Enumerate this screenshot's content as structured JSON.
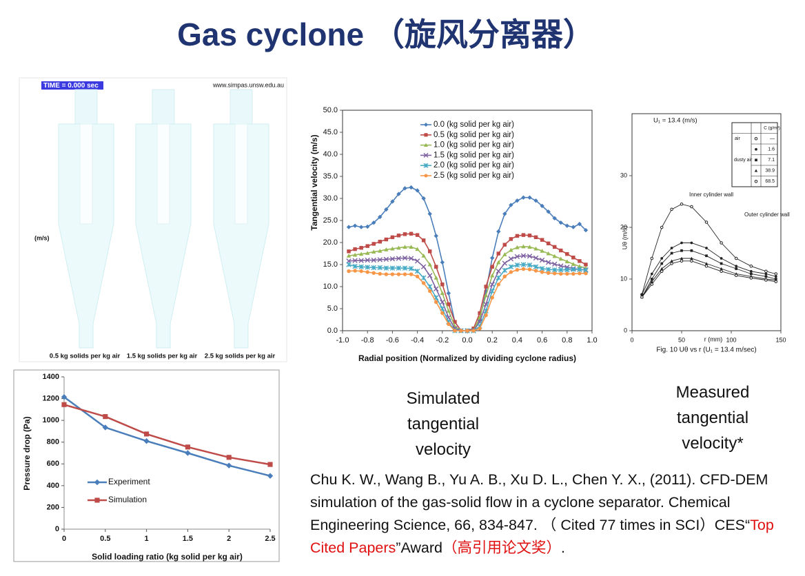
{
  "title": "Gas cyclone （旋风分离器）",
  "simulation_panel": {
    "time_label": "TIME =  0.000 sec",
    "url": "www.simpas.unsw.edu.au",
    "unit": "(m/s)",
    "labels": [
      "0.5 kg solids per kg air",
      "1.5 kg solids per kg air",
      "2.5 kg solids per kg air"
    ]
  },
  "captions": {
    "simulated": "Simulated tangential velocity",
    "measured": "Measured tangential velocity*"
  },
  "citation": {
    "text": "Chu K. W., Wang B., Yu A. B., Xu D. L., Chen Y. X., (2011). CFD-DEM simulation of the gas-solid flow in a cyclone separator. Chemical Engineering Science, 66, 834-847. （ Cited 77 times in SCI）CES“",
    "highlight": "Top Cited Papers",
    "award": "”Award",
    "award_cn": "（高引用论文奖）",
    "end": "."
  },
  "chart_data": [
    {
      "type": "line",
      "x_label": "Radial position (Normalized by dividing cyclone radius)",
      "y_label": "Tangential velocity (m/s)",
      "x": [
        -0.95,
        -0.9,
        -0.85,
        -0.8,
        -0.75,
        -0.7,
        -0.65,
        -0.6,
        -0.55,
        -0.5,
        -0.45,
        -0.4,
        -0.35,
        -0.3,
        -0.25,
        -0.2,
        -0.15,
        -0.1,
        -0.05,
        0,
        0.05,
        0.1,
        0.15,
        0.2,
        0.25,
        0.3,
        0.35,
        0.4,
        0.45,
        0.5,
        0.55,
        0.6,
        0.65,
        0.7,
        0.75,
        0.8,
        0.85,
        0.9,
        0.95
      ],
      "series": [
        {
          "name": "0.0 (kg solid per kg air)",
          "color": "#4a7ebb",
          "marker": "diamond",
          "values": [
            23.5,
            23.8,
            23.5,
            23.6,
            24.5,
            25.8,
            27.5,
            29.3,
            31,
            32.3,
            32.5,
            31.8,
            30,
            26.5,
            21.5,
            15.5,
            8.5,
            2,
            0,
            0,
            0,
            2.5,
            9,
            16.5,
            22.5,
            26.5,
            28.5,
            29.5,
            30.2,
            30.2,
            29.5,
            28.3,
            27,
            25.5,
            24.5,
            23.8,
            23.5,
            24.2,
            22.8
          ]
        },
        {
          "name": "0.5 (kg solid per kg air)",
          "color": "#be4b48",
          "marker": "square",
          "values": [
            18,
            18.5,
            18.8,
            19.2,
            19.7,
            20.2,
            20.7,
            21.2,
            21.6,
            21.9,
            22,
            21.7,
            20.5,
            18,
            14.5,
            10.5,
            6,
            2,
            0,
            0,
            0.5,
            4,
            10,
            14.5,
            17.5,
            19.5,
            20.8,
            21.5,
            21.7,
            21.6,
            21.2,
            20.6,
            19.8,
            19,
            18.2,
            17.4,
            16.6,
            15.8,
            15
          ]
        },
        {
          "name": "1.0 (kg solid per kg air)",
          "color": "#98b954",
          "marker": "triangle",
          "values": [
            17,
            17.2,
            17.4,
            17.6,
            17.9,
            18.1,
            18.4,
            18.6,
            18.8,
            19,
            19,
            18.5,
            17,
            15,
            12,
            8.5,
            4.5,
            1,
            0,
            0,
            0,
            3,
            8,
            12.5,
            15.5,
            17.3,
            18.3,
            18.9,
            19.1,
            19,
            18.6,
            18.1,
            17.5,
            16.9,
            16.3,
            15.7,
            15.1,
            14.6,
            14.2
          ]
        },
        {
          "name": "1.5 (kg solid per kg air)",
          "color": "#7d60a0",
          "marker": "x",
          "values": [
            15.8,
            15.9,
            15.9,
            16,
            16,
            16.1,
            16.2,
            16.3,
            16.4,
            16.5,
            16.4,
            15.8,
            14.5,
            12.5,
            9.5,
            6.5,
            3,
            0.5,
            0,
            0,
            0,
            2,
            6,
            10.5,
            13.5,
            15.3,
            16.3,
            16.8,
            17,
            16.9,
            16.5,
            16,
            15.5,
            15.1,
            14.7,
            14.4,
            14.1,
            13.9,
            13.8
          ]
        },
        {
          "name": "2.0 (kg solid per kg air)",
          "color": "#46aac5",
          "marker": "star",
          "values": [
            15,
            14.6,
            14.5,
            14.4,
            14.3,
            14.3,
            14.2,
            14.2,
            14.2,
            14.2,
            14.1,
            13.5,
            12,
            10,
            7.5,
            5,
            2,
            0,
            0,
            0,
            0,
            1,
            4.5,
            9,
            12,
            13.7,
            14.5,
            14.9,
            15,
            14.9,
            14.5,
            14.1,
            13.9,
            13.8,
            13.8,
            13.8,
            13.9,
            13.9,
            13.7
          ]
        },
        {
          "name": "2.5 (kg solid per kg air)",
          "color": "#f79646",
          "marker": "circle",
          "values": [
            13.5,
            13.6,
            13.5,
            13.3,
            13.1,
            12.9,
            12.8,
            12.8,
            12.8,
            12.8,
            12.8,
            12.3,
            10.8,
            9,
            6.5,
            4,
            1.5,
            0,
            0,
            0,
            0,
            0.5,
            3.5,
            7.5,
            10.5,
            12.3,
            13.3,
            13.8,
            14,
            13.9,
            13.6,
            13.3,
            13.1,
            13,
            12.9,
            12.9,
            12.9,
            13,
            13
          ]
        }
      ],
      "xlim": [
        -1,
        1
      ],
      "ylim": [
        0,
        50
      ],
      "xticks": [
        {
          "value": -1,
          "label": "-1.0"
        },
        -0.8,
        -0.6,
        -0.4,
        -0.2,
        {
          "value": 0,
          "label": "0.0"
        },
        0.2,
        0.4,
        0.6,
        0.8,
        {
          "value": 1,
          "label": "1.0"
        }
      ],
      "yticks": [
        {
          "value": 0,
          "label": "0.0"
        },
        {
          "value": 5,
          "label": "5.0"
        },
        {
          "value": 10,
          "label": "10.0"
        },
        {
          "value": 15,
          "label": "15.0"
        },
        {
          "value": 20,
          "label": "20.0"
        },
        {
          "value": 25,
          "label": "25.0"
        },
        {
          "value": 30,
          "label": "30.0"
        },
        {
          "value": 35,
          "label": "35.0"
        },
        {
          "value": 40,
          "label": "40.0"
        },
        {
          "value": 45,
          "label": "45.0"
        },
        {
          "value": 50,
          "label": "50.0"
        }
      ],
      "legend": "upper-left"
    },
    {
      "type": "line",
      "title": "Fig. 10  Uθ vs r (U₁ = 13.4 m/sec)",
      "annotations": [
        "U₁ = 13.4 (m/s)",
        "Inner cylinder wall",
        "Outer cylinder wall"
      ],
      "x_label": "r (mm)",
      "y_label": "Uθ (m/s)",
      "x": [
        10,
        20,
        30,
        40,
        50,
        60,
        75,
        90,
        105,
        120,
        135,
        145
      ],
      "legend_header": "C (g/m³)",
      "legend_groups": [
        "air",
        "dusty air"
      ],
      "series": [
        {
          "name": "—",
          "color": "#222222",
          "marker": "open-circle",
          "values": [
            7,
            14,
            20,
            23.5,
            24.5,
            24,
            21,
            17,
            14,
            12.5,
            11.5,
            11
          ]
        },
        {
          "name": "1.6",
          "color": "#222222",
          "marker": "filled-circle",
          "values": [
            7,
            11,
            14,
            16,
            17,
            17,
            16,
            14,
            12.5,
            11.5,
            11,
            10.5
          ]
        },
        {
          "name": "7.1",
          "color": "#222222",
          "marker": "square",
          "values": [
            6.5,
            10,
            13,
            15,
            15.5,
            15.5,
            14.5,
            13,
            12,
            11,
            10.5,
            10
          ]
        },
        {
          "name": "38.9",
          "color": "#222222",
          "marker": "triangle",
          "values": [
            6.5,
            9.5,
            12,
            13.5,
            14,
            14,
            13,
            12,
            11,
            10.5,
            10,
            9.8
          ]
        },
        {
          "name": "68.5",
          "color": "#222222",
          "marker": "open-circle",
          "values": [
            6.5,
            9,
            11.5,
            13,
            13.5,
            13.5,
            12.5,
            11.5,
            10.7,
            10.2,
            9.8,
            9.5
          ]
        }
      ],
      "xlim": [
        0,
        150
      ],
      "ylim": [
        0,
        42
      ],
      "xticks": [
        0,
        50,
        100,
        150
      ],
      "yticks": [
        0,
        10,
        20,
        30
      ],
      "legend": "upper-right"
    },
    {
      "type": "line",
      "x_label": "Solid loading ratio (kg solid per kg air)",
      "y_label": "Pressure drop (Pa)",
      "x": [
        0,
        0.5,
        1,
        1.5,
        2,
        2.5
      ],
      "series": [
        {
          "name": "Experiment",
          "color": "#4a7ebb",
          "marker": "diamond",
          "values": [
            1215,
            935,
            810,
            700,
            585,
            490
          ]
        },
        {
          "name": "Simulation",
          "color": "#be4b48",
          "marker": "square",
          "values": [
            1145,
            1035,
            875,
            755,
            660,
            595
          ]
        }
      ],
      "xlim": [
        0,
        2.5
      ],
      "ylim": [
        0,
        1400
      ],
      "xticks": [
        0,
        0.5,
        1,
        1.5,
        2,
        2.5
      ],
      "yticks": [
        0,
        200,
        400,
        600,
        800,
        1000,
        1200,
        1400
      ],
      "legend": "lower-left"
    }
  ]
}
